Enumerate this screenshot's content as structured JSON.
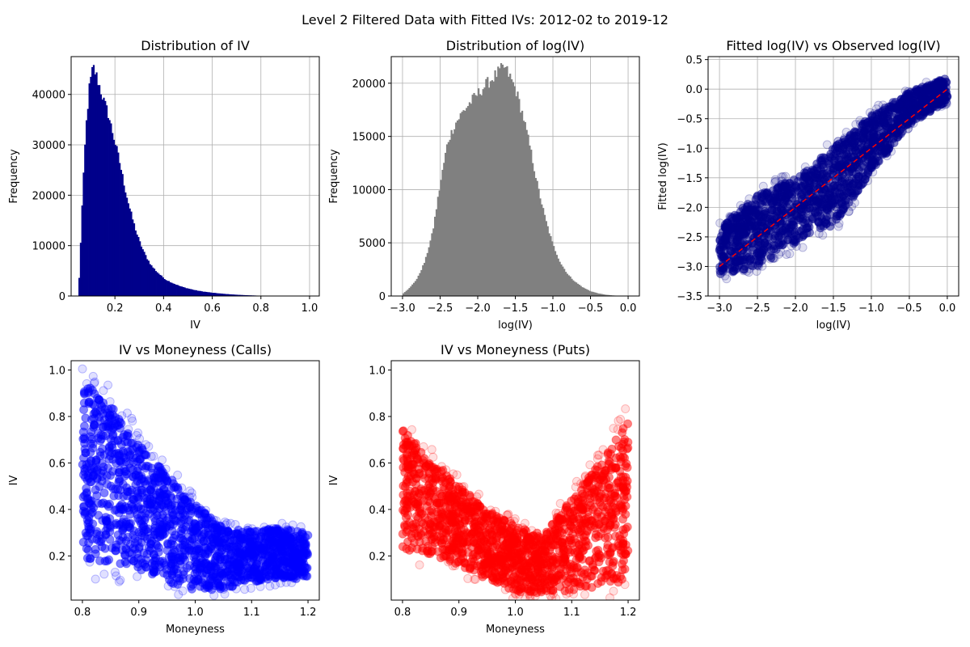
{
  "suptitle": "Level 2 Filtered Data with Fitted IVs: 2012-02 to 2019-12",
  "chart_data": [
    {
      "type": "histogram",
      "title": "Distribution of IV",
      "xlabel": "IV",
      "ylabel": "Frequency",
      "xlim": [
        0.02,
        1.04
      ],
      "ylim": [
        0,
        47500
      ],
      "xticks": [
        0.2,
        0.4,
        0.6,
        0.8,
        1.0
      ],
      "yticks": [
        0,
        10000,
        20000,
        30000,
        40000
      ],
      "grid": true,
      "color": "#00008b",
      "bins": [
        [
          0.05,
          0
        ],
        [
          0.065,
          18000
        ],
        [
          0.08,
          33000
        ],
        [
          0.095,
          41500
        ],
        [
          0.11,
          45500
        ],
        [
          0.125,
          43500
        ],
        [
          0.14,
          41000
        ],
        [
          0.155,
          38500
        ],
        [
          0.17,
          36500
        ],
        [
          0.185,
          33500
        ],
        [
          0.2,
          30500
        ],
        [
          0.215,
          27500
        ],
        [
          0.23,
          24000
        ],
        [
          0.245,
          20500
        ],
        [
          0.26,
          17500
        ],
        [
          0.275,
          14800
        ],
        [
          0.29,
          12300
        ],
        [
          0.305,
          10300
        ],
        [
          0.32,
          8600
        ],
        [
          0.335,
          7200
        ],
        [
          0.35,
          6000
        ],
        [
          0.37,
          4900
        ],
        [
          0.39,
          4000
        ],
        [
          0.41,
          3200
        ],
        [
          0.44,
          2500
        ],
        [
          0.47,
          1900
        ],
        [
          0.5,
          1500
        ],
        [
          0.53,
          1150
        ],
        [
          0.56,
          900
        ],
        [
          0.6,
          650
        ],
        [
          0.65,
          420
        ],
        [
          0.7,
          250
        ],
        [
          0.75,
          140
        ],
        [
          0.8,
          60
        ],
        [
          0.9,
          20
        ],
        [
          1.0,
          5
        ]
      ]
    },
    {
      "type": "histogram",
      "title": "Distribution of log(IV)",
      "xlabel": "log(IV)",
      "ylabel": "Frequency",
      "xlim": [
        -3.15,
        0.15
      ],
      "ylim": [
        0,
        22500
      ],
      "xticks": [
        -3.0,
        -2.5,
        -2.0,
        -1.5,
        -1.0,
        -0.5,
        0.0
      ],
      "yticks": [
        0,
        5000,
        10000,
        15000,
        20000
      ],
      "grid": true,
      "color": "#808080",
      "bins": [
        [
          -3.0,
          200
        ],
        [
          -2.9,
          800
        ],
        [
          -2.8,
          1700
        ],
        [
          -2.7,
          3300
        ],
        [
          -2.6,
          6000
        ],
        [
          -2.5,
          10500
        ],
        [
          -2.4,
          14500
        ],
        [
          -2.3,
          16200
        ],
        [
          -2.2,
          17300
        ],
        [
          -2.1,
          18200
        ],
        [
          -2.0,
          19000
        ],
        [
          -1.9,
          19800
        ],
        [
          -1.8,
          20500
        ],
        [
          -1.7,
          21200
        ],
        [
          -1.65,
          21500
        ],
        [
          -1.6,
          21000
        ],
        [
          -1.5,
          19500
        ],
        [
          -1.4,
          17000
        ],
        [
          -1.3,
          13800
        ],
        [
          -1.2,
          10200
        ],
        [
          -1.1,
          7200
        ],
        [
          -1.0,
          4800
        ],
        [
          -0.9,
          3100
        ],
        [
          -0.8,
          2000
        ],
        [
          -0.7,
          1300
        ],
        [
          -0.6,
          800
        ],
        [
          -0.5,
          450
        ],
        [
          -0.4,
          250
        ],
        [
          -0.3,
          120
        ],
        [
          -0.2,
          50
        ],
        [
          -0.1,
          15
        ],
        [
          0.0,
          0
        ]
      ]
    },
    {
      "type": "scatter",
      "title": "Fitted log(IV) vs  Observed log(IV)",
      "xlabel": "log(IV)",
      "ylabel": "Fitted log(IV)",
      "xlim": [
        -3.15,
        0.15
      ],
      "ylim": [
        -3.5,
        0.55
      ],
      "xticks": [
        -3.0,
        -2.5,
        -2.0,
        -1.5,
        -1.0,
        -0.5,
        0.0
      ],
      "yticks": [
        -3.5,
        -3.0,
        -2.5,
        -2.0,
        -1.5,
        -1.0,
        -0.5,
        0.0,
        0.5
      ],
      "grid": true,
      "color": "#00008b",
      "reference_line": {
        "x": [
          -3.0,
          0.0
        ],
        "y": [
          -3.0,
          0.0
        ],
        "color": "#ff0000",
        "style": "dashed"
      },
      "band": {
        "upper": [
          [
            -3.0,
            -2.3
          ],
          [
            -2.5,
            -1.8
          ],
          [
            -2.0,
            -1.5
          ],
          [
            -1.5,
            -1.0
          ],
          [
            -1.0,
            -0.45
          ],
          [
            -0.5,
            -0.05
          ],
          [
            0.0,
            0.2
          ]
        ],
        "lower": [
          [
            -3.0,
            -3.15
          ],
          [
            -2.5,
            -3.0
          ],
          [
            -2.0,
            -2.6
          ],
          [
            -1.5,
            -2.3
          ],
          [
            -1.0,
            -1.4
          ],
          [
            -0.5,
            -0.6
          ],
          [
            0.0,
            -0.2
          ]
        ]
      }
    },
    {
      "type": "scatter",
      "title": "IV vs Moneyness (Calls)",
      "xlabel": "Moneyness",
      "ylabel": "IV",
      "xlim": [
        0.78,
        1.22
      ],
      "ylim": [
        0.01,
        1.04
      ],
      "xticks": [
        0.8,
        0.9,
        1.0,
        1.1,
        1.2
      ],
      "yticks": [
        0.2,
        0.4,
        0.6,
        0.8,
        1.0
      ],
      "grid": false,
      "color": "#0000ff",
      "band": {
        "upper": [
          [
            0.8,
            0.95
          ],
          [
            0.85,
            0.85
          ],
          [
            0.9,
            0.68
          ],
          [
            0.95,
            0.55
          ],
          [
            1.0,
            0.42
          ],
          [
            1.05,
            0.32
          ],
          [
            1.1,
            0.31
          ],
          [
            1.15,
            0.32
          ],
          [
            1.2,
            0.3
          ]
        ],
        "lower": [
          [
            0.8,
            0.19
          ],
          [
            0.85,
            0.17
          ],
          [
            0.9,
            0.14
          ],
          [
            0.95,
            0.09
          ],
          [
            1.0,
            0.04
          ],
          [
            1.05,
            0.06
          ],
          [
            1.1,
            0.08
          ],
          [
            1.15,
            0.1
          ],
          [
            1.2,
            0.1
          ]
        ]
      }
    },
    {
      "type": "scatter",
      "title": "IV vs Moneyness (Puts)",
      "xlabel": "Moneyness",
      "ylabel": "IV",
      "xlim": [
        0.78,
        1.22
      ],
      "ylim": [
        0.01,
        1.04
      ],
      "xticks": [
        0.8,
        0.9,
        1.0,
        1.1,
        1.2
      ],
      "yticks": [
        0.2,
        0.4,
        0.6,
        0.8,
        1.0
      ],
      "grid": false,
      "color": "#ff0000",
      "band": {
        "upper": [
          [
            0.8,
            0.75
          ],
          [
            0.85,
            0.62
          ],
          [
            0.9,
            0.5
          ],
          [
            0.95,
            0.4
          ],
          [
            1.0,
            0.33
          ],
          [
            1.05,
            0.29
          ],
          [
            1.1,
            0.45
          ],
          [
            1.15,
            0.6
          ],
          [
            1.2,
            0.78
          ]
        ],
        "lower": [
          [
            0.8,
            0.22
          ],
          [
            0.85,
            0.2
          ],
          [
            0.9,
            0.16
          ],
          [
            0.95,
            0.1
          ],
          [
            1.0,
            0.04
          ],
          [
            1.05,
            0.04
          ],
          [
            1.1,
            0.05
          ],
          [
            1.15,
            0.07
          ],
          [
            1.2,
            0.09
          ]
        ]
      }
    }
  ]
}
